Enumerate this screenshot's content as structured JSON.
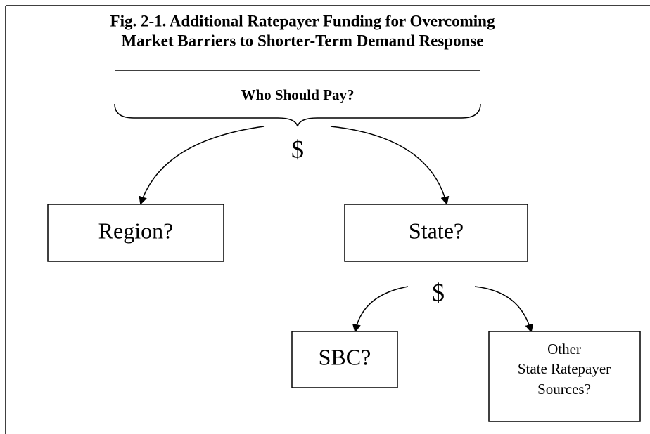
{
  "title": [
    "Fig. 2-1. Additional Ratepayer Funding for Overcoming",
    "Market Barriers to Shorter-Term Demand Response"
  ],
  "question": "Who Should Pay?",
  "symbols": [
    "$",
    "$"
  ],
  "nodes": [
    {
      "label": [
        "Region?"
      ]
    },
    {
      "label": [
        "State?"
      ]
    },
    {
      "label": [
        "SBC?"
      ]
    },
    {
      "label": [
        "Other",
        "State Ratepayer",
        "Sources?"
      ]
    }
  ]
}
